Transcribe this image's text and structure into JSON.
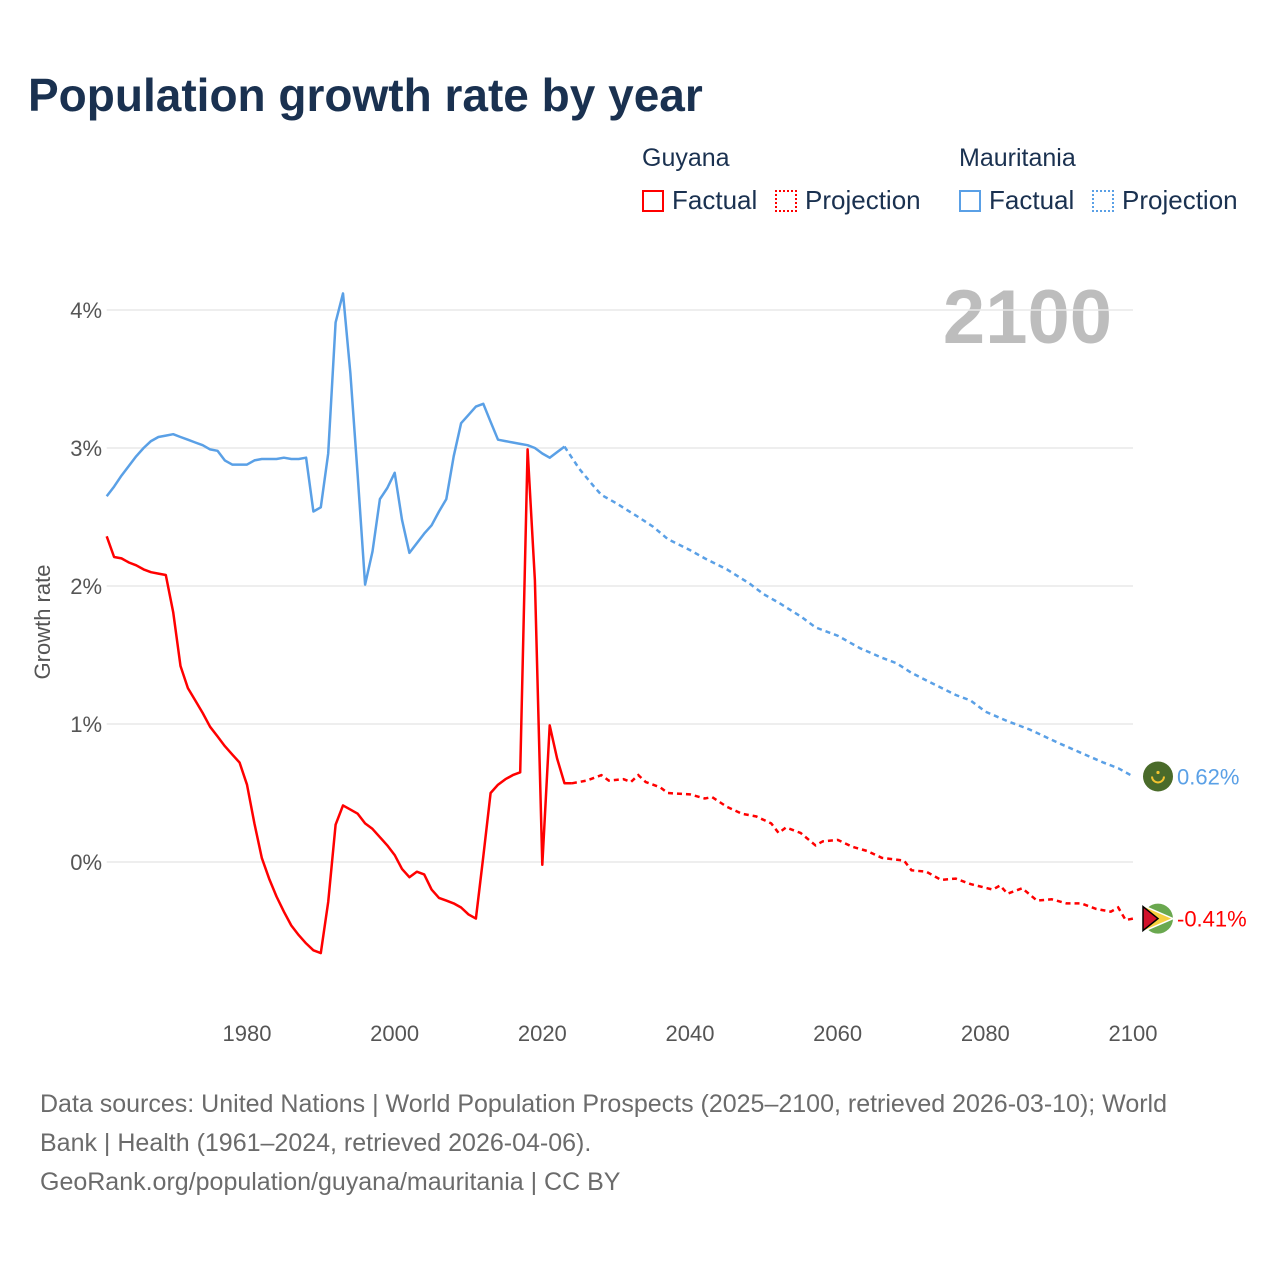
{
  "chart_data": {
    "type": "line",
    "title": "Population growth rate by year",
    "xlabel": "",
    "ylabel": "Growth rate",
    "xlim": [
      1961,
      2100
    ],
    "ylim": [
      -0.9,
      4.3
    ],
    "x_ticks": [
      "1980",
      "2000",
      "2020",
      "2040",
      "2060",
      "2080",
      "2100"
    ],
    "x_tick_values": [
      1980,
      2000,
      2020,
      2040,
      2060,
      2080,
      2100
    ],
    "y_ticks": [
      "0%",
      "1%",
      "2%",
      "3%",
      "4%"
    ],
    "y_tick_values": [
      0,
      1,
      2,
      3,
      4
    ],
    "grid": true,
    "current_year_label": "2100",
    "legend": {
      "placement": "top-right",
      "groups": [
        {
          "country": "Guyana",
          "factual": "Factual",
          "projection": "Projection"
        },
        {
          "country": "Mauritania",
          "factual": "Factual",
          "projection": "Projection"
        }
      ]
    },
    "series": [
      {
        "name": "Guyana",
        "color": "#ff0000",
        "end_label": "-0.41%",
        "factual": [
          [
            1961,
            2.36
          ],
          [
            1962,
            2.21
          ],
          [
            1963,
            2.2
          ],
          [
            1964,
            2.17
          ],
          [
            1965,
            2.15
          ],
          [
            1966,
            2.12
          ],
          [
            1967,
            2.1
          ],
          [
            1968,
            2.09
          ],
          [
            1969,
            2.08
          ],
          [
            1970,
            1.81
          ],
          [
            1971,
            1.42
          ],
          [
            1972,
            1.26
          ],
          [
            1973,
            1.17
          ],
          [
            1974,
            1.08
          ],
          [
            1975,
            0.98
          ],
          [
            1976,
            0.91
          ],
          [
            1977,
            0.84
          ],
          [
            1978,
            0.78
          ],
          [
            1979,
            0.72
          ],
          [
            1980,
            0.56
          ],
          [
            1981,
            0.28
          ],
          [
            1982,
            0.03
          ],
          [
            1983,
            -0.12
          ],
          [
            1984,
            -0.25
          ],
          [
            1985,
            -0.36
          ],
          [
            1986,
            -0.46
          ],
          [
            1987,
            -0.53
          ],
          [
            1988,
            -0.59
          ],
          [
            1989,
            -0.64
          ],
          [
            1990,
            -0.66
          ],
          [
            1991,
            -0.29
          ],
          [
            1992,
            0.27
          ],
          [
            1993,
            0.41
          ],
          [
            1994,
            0.38
          ],
          [
            1995,
            0.35
          ],
          [
            1996,
            0.28
          ],
          [
            1997,
            0.24
          ],
          [
            1998,
            0.18
          ],
          [
            1999,
            0.12
          ],
          [
            2000,
            0.05
          ],
          [
            2001,
            -0.05
          ],
          [
            2002,
            -0.11
          ],
          [
            2003,
            -0.07
          ],
          [
            2004,
            -0.09
          ],
          [
            2005,
            -0.2
          ],
          [
            2006,
            -0.26
          ],
          [
            2007,
            -0.28
          ],
          [
            2008,
            -0.3
          ],
          [
            2009,
            -0.33
          ],
          [
            2010,
            -0.38
          ],
          [
            2011,
            -0.41
          ],
          [
            2012,
            0.04
          ],
          [
            2013,
            0.5
          ],
          [
            2014,
            0.56
          ],
          [
            2015,
            0.6
          ],
          [
            2016,
            0.63
          ],
          [
            2017,
            0.65
          ],
          [
            2018,
            2.99
          ],
          [
            2019,
            2.04
          ],
          [
            2020,
            -0.02
          ],
          [
            2021,
            0.99
          ],
          [
            2022,
            0.75
          ],
          [
            2023,
            0.57
          ],
          [
            2024,
            0.57
          ]
        ],
        "projection": [
          [
            2024,
            0.57
          ],
          [
            2026,
            0.59
          ],
          [
            2028,
            0.63
          ],
          [
            2029,
            0.59
          ],
          [
            2031,
            0.6
          ],
          [
            2032,
            0.58
          ],
          [
            2033,
            0.63
          ],
          [
            2034,
            0.58
          ],
          [
            2036,
            0.54
          ],
          [
            2037,
            0.5
          ],
          [
            2040,
            0.49
          ],
          [
            2042,
            0.46
          ],
          [
            2043,
            0.47
          ],
          [
            2045,
            0.4
          ],
          [
            2047,
            0.35
          ],
          [
            2049,
            0.33
          ],
          [
            2051,
            0.28
          ],
          [
            2052,
            0.21
          ],
          [
            2053,
            0.25
          ],
          [
            2055,
            0.21
          ],
          [
            2057,
            0.12
          ],
          [
            2058,
            0.15
          ],
          [
            2060,
            0.16
          ],
          [
            2062,
            0.11
          ],
          [
            2064,
            0.08
          ],
          [
            2066,
            0.03
          ],
          [
            2069,
            0.01
          ],
          [
            2070,
            -0.06
          ],
          [
            2072,
            -0.07
          ],
          [
            2074,
            -0.13
          ],
          [
            2076,
            -0.12
          ],
          [
            2078,
            -0.16
          ],
          [
            2081,
            -0.2
          ],
          [
            2082,
            -0.17
          ],
          [
            2083,
            -0.23
          ],
          [
            2085,
            -0.19
          ],
          [
            2087,
            -0.28
          ],
          [
            2089,
            -0.27
          ],
          [
            2091,
            -0.3
          ],
          [
            2093,
            -0.3
          ],
          [
            2095,
            -0.34
          ],
          [
            2097,
            -0.36
          ],
          [
            2098,
            -0.33
          ],
          [
            2099,
            -0.42
          ],
          [
            2100,
            -0.41
          ]
        ]
      },
      {
        "name": "Mauritania",
        "color": "#5aa0e6",
        "end_label": "0.62%",
        "factual": [
          [
            1961,
            2.65
          ],
          [
            1962,
            2.72
          ],
          [
            1963,
            2.8
          ],
          [
            1964,
            2.87
          ],
          [
            1965,
            2.94
          ],
          [
            1966,
            3.0
          ],
          [
            1967,
            3.05
          ],
          [
            1968,
            3.08
          ],
          [
            1969,
            3.09
          ],
          [
            1970,
            3.1
          ],
          [
            1971,
            3.08
          ],
          [
            1972,
            3.06
          ],
          [
            1973,
            3.04
          ],
          [
            1974,
            3.02
          ],
          [
            1975,
            2.99
          ],
          [
            1976,
            2.98
          ],
          [
            1977,
            2.91
          ],
          [
            1978,
            2.88
          ],
          [
            1979,
            2.88
          ],
          [
            1980,
            2.88
          ],
          [
            1981,
            2.91
          ],
          [
            1982,
            2.92
          ],
          [
            1983,
            2.92
          ],
          [
            1984,
            2.92
          ],
          [
            1985,
            2.93
          ],
          [
            1986,
            2.92
          ],
          [
            1987,
            2.92
          ],
          [
            1988,
            2.93
          ],
          [
            1989,
            2.54
          ],
          [
            1990,
            2.57
          ],
          [
            1991,
            2.96
          ],
          [
            1992,
            3.91
          ],
          [
            1993,
            4.12
          ],
          [
            1994,
            3.54
          ],
          [
            1995,
            2.8
          ],
          [
            1996,
            2.01
          ],
          [
            1997,
            2.25
          ],
          [
            1998,
            2.63
          ],
          [
            1999,
            2.71
          ],
          [
            2000,
            2.82
          ],
          [
            2001,
            2.48
          ],
          [
            2002,
            2.24
          ],
          [
            2003,
            2.31
          ],
          [
            2004,
            2.38
          ],
          [
            2005,
            2.44
          ],
          [
            2006,
            2.54
          ],
          [
            2007,
            2.63
          ],
          [
            2008,
            2.94
          ],
          [
            2009,
            3.18
          ],
          [
            2010,
            3.24
          ],
          [
            2011,
            3.3
          ],
          [
            2012,
            3.32
          ],
          [
            2013,
            3.19
          ],
          [
            2014,
            3.06
          ],
          [
            2015,
            3.05
          ],
          [
            2016,
            3.04
          ],
          [
            2017,
            3.03
          ],
          [
            2018,
            3.02
          ],
          [
            2019,
            3.0
          ],
          [
            2020,
            2.96
          ],
          [
            2021,
            2.93
          ],
          [
            2022,
            2.97
          ],
          [
            2023,
            3.01
          ]
        ],
        "projection": [
          [
            2023,
            3.01
          ],
          [
            2025,
            2.85
          ],
          [
            2027,
            2.72
          ],
          [
            2028,
            2.66
          ],
          [
            2030,
            2.6
          ],
          [
            2033,
            2.5
          ],
          [
            2035,
            2.43
          ],
          [
            2037,
            2.34
          ],
          [
            2040,
            2.26
          ],
          [
            2042,
            2.2
          ],
          [
            2045,
            2.12
          ],
          [
            2048,
            2.02
          ],
          [
            2050,
            1.94
          ],
          [
            2052,
            1.88
          ],
          [
            2055,
            1.78
          ],
          [
            2057,
            1.7
          ],
          [
            2060,
            1.64
          ],
          [
            2063,
            1.55
          ],
          [
            2066,
            1.48
          ],
          [
            2068,
            1.44
          ],
          [
            2070,
            1.37
          ],
          [
            2073,
            1.29
          ],
          [
            2076,
            1.21
          ],
          [
            2078,
            1.17
          ],
          [
            2080,
            1.09
          ],
          [
            2083,
            1.02
          ],
          [
            2086,
            0.96
          ],
          [
            2088,
            0.91
          ],
          [
            2090,
            0.86
          ],
          [
            2093,
            0.79
          ],
          [
            2096,
            0.72
          ],
          [
            2098,
            0.68
          ],
          [
            2100,
            0.62
          ]
        ]
      }
    ]
  },
  "footer": {
    "line1": "Data sources: United Nations | World Population Prospects (2025–2100, retrieved 2026-03-10); World",
    "line2": "Bank | Health (1961–2024, retrieved 2026-04-06).",
    "line3": "GeoRank.org/population/guyana/mauritania | CC BY"
  },
  "flags": {
    "guyana": "guyana-flag-icon",
    "mauritania": "mauritania-flag-icon"
  }
}
